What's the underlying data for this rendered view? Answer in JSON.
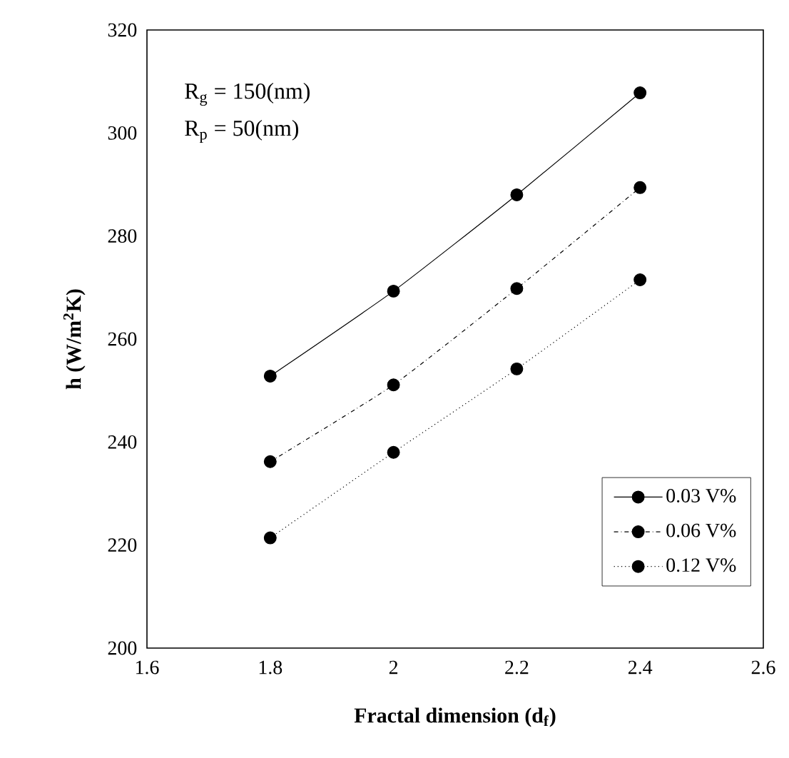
{
  "chart_data": {
    "type": "line",
    "xlabel": "Fractal dimension  (d$_{f}$)",
    "ylabel": "h (W/m$^{2}$K)",
    "annotations": [
      "R$_{g}$ = 150(nm)",
      "R$_{p}$ = 50(nm)"
    ],
    "x": [
      1.8,
      2,
      2.2,
      2.4
    ],
    "series": [
      {
        "name": "0.03 V%",
        "color": "#000000",
        "line_style": "solid",
        "values": [
          252.8,
          269.3,
          288,
          307.8
        ]
      },
      {
        "name": "0.06 V%",
        "color": "#000000",
        "line_style": "dashdot",
        "values": [
          236.2,
          251.1,
          269.8,
          289.4
        ]
      },
      {
        "name": "0.12 V%",
        "color": "#000000",
        "line_style": "dotted",
        "values": [
          221.4,
          238,
          254.2,
          271.5
        ]
      }
    ],
    "xlim": [
      1.6,
      2.6
    ],
    "xticks": [
      1.6,
      1.8,
      2,
      2.2,
      2.4,
      2.6
    ],
    "ylim": [
      200,
      320
    ],
    "yticks": [
      200,
      220,
      240,
      260,
      280,
      300,
      320
    ],
    "grid": false,
    "legend": "bottom right",
    "marker": "circle"
  }
}
